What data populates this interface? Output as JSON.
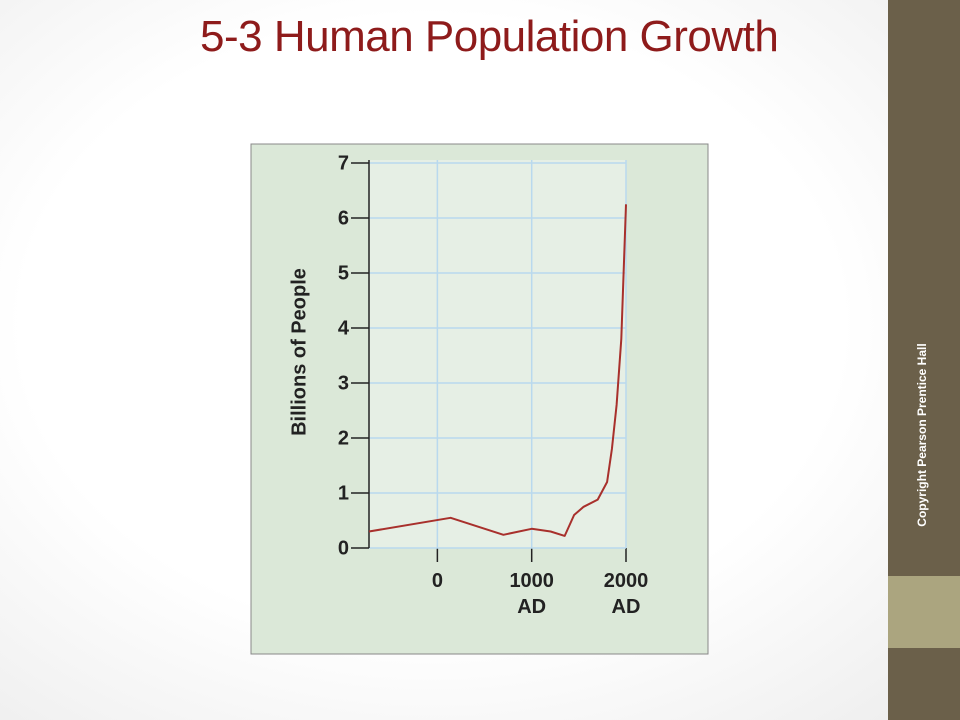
{
  "slide": {
    "title": "5-3 Human Population Growth",
    "footer": "Copyright Pearson Prentice Hall"
  },
  "chart_data": {
    "type": "line",
    "y_label": "Billions of People",
    "x": [
      -725,
      140,
      700,
      1000,
      1200,
      1350,
      1450,
      1550,
      1700,
      1800,
      1850,
      1900,
      1950,
      2000
    ],
    "values": [
      0.3,
      0.55,
      0.24,
      0.35,
      0.3,
      0.22,
      0.6,
      0.75,
      0.88,
      1.2,
      1.8,
      2.6,
      3.8,
      6.25
    ],
    "color": "#a8302c",
    "xlim": [
      -725,
      2000
    ],
    "xticks": [
      0,
      {
        "value": 1000,
        "label": "1000\nAD"
      },
      {
        "value": 2000,
        "label": "2000\nAD"
      }
    ],
    "ylim": [
      0,
      7
    ],
    "yticks": [
      0,
      1,
      2,
      3,
      4,
      5,
      6,
      7
    ],
    "grid": true,
    "grid_color": "#b9d9ee"
  }
}
